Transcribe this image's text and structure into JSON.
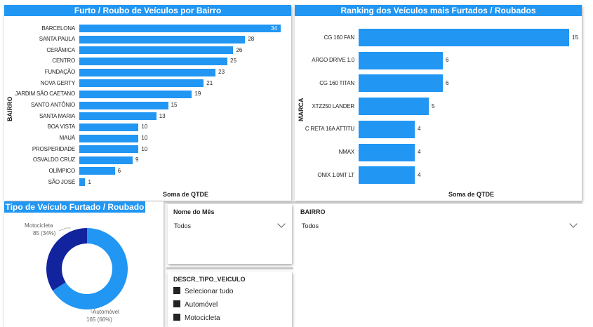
{
  "bairro_chart": {
    "title": "Furto / Roubo de Veículos por Bairro",
    "ylabel": "BAIRRO",
    "xlabel": "Soma de QTDE",
    "accent": "#2196f3"
  },
  "marca_chart": {
    "title": "Ranking dos Veículos mais Furtados / Roubados",
    "ylabel": "MARCA",
    "xlabel": "Soma de QTDE",
    "accent": "#2196f3"
  },
  "tipo_chart": {
    "title": "Tipo de Veículo Furtado / Roubado",
    "slice_labels": {
      "motocicleta_name": "Motocicleta",
      "motocicleta_value": "85 (34%)",
      "automovel_name": "Automóvel",
      "automovel_value": "165 (66%)"
    }
  },
  "slicer_mes": {
    "title": "Nome do Mês",
    "value": "Todos"
  },
  "slicer_bairro": {
    "title": "BAIRRO",
    "value": "Todos"
  },
  "slicer_tipo": {
    "title": "DESCR_TIPO_VEICULO",
    "options": [
      "Selecionar tudo",
      "Automóvel",
      "Motocicleta"
    ]
  },
  "chart_data": [
    {
      "type": "bar",
      "orientation": "horizontal",
      "title": "Furto / Roubo de Veículos por Bairro",
      "xlabel": "Soma de QTDE",
      "ylabel": "BAIRRO",
      "categories": [
        "BARCELONA",
        "SANTA PAULA",
        "CERÂMICA",
        "CENTRO",
        "FUNDAÇÃO",
        "NOVA GERTY",
        "JARDIM SÃO CAETANO",
        "SANTO ANTÔNIO",
        "SANTA MARIA",
        "BOA VISTA",
        "MAUÁ",
        "PROSPERIDADE",
        "OSVALDO CRUZ",
        "OLÍMPICO",
        "SÃO JOSÉ"
      ],
      "values": [
        34,
        28,
        26,
        25,
        23,
        21,
        19,
        15,
        13,
        10,
        10,
        10,
        9,
        6,
        1
      ],
      "xlim": [
        0,
        34
      ],
      "grid": false
    },
    {
      "type": "bar",
      "orientation": "horizontal",
      "title": "Ranking dos Veículos mais Furtados / Roubados",
      "xlabel": "Soma de QTDE",
      "ylabel": "MARCA",
      "categories": [
        "CG 160 FAN",
        "ARGO DRIVE 1.0",
        "CG 160 TITAN",
        "XTZ250 LANDER",
        "C RETA 16A ATTITU",
        "NMAX",
        "ONIX 1.0MT LT"
      ],
      "values": [
        15,
        6,
        6,
        5,
        4,
        4,
        4
      ],
      "xlim": [
        0,
        15
      ],
      "grid": false
    },
    {
      "type": "pie",
      "subtype": "donut",
      "title": "Tipo de Veículo Furtado / Roubado",
      "categories": [
        "Automóvel",
        "Motocicleta"
      ],
      "values": [
        165,
        85
      ],
      "percentages": [
        66,
        34
      ],
      "colors": [
        "#2196f3",
        "#12239e"
      ]
    }
  ]
}
